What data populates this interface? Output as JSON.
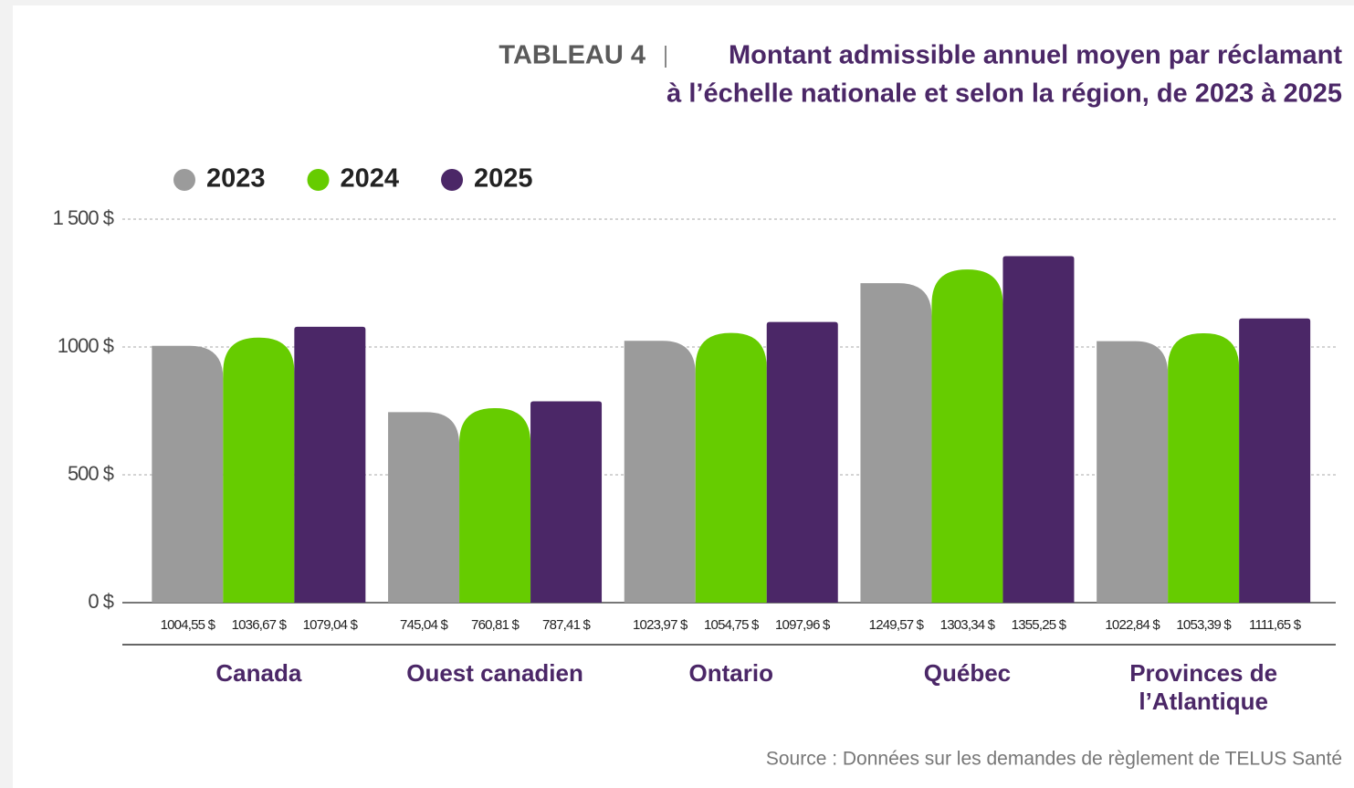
{
  "chart_data": {
    "type": "bar",
    "title_label": "TABLEAU 4",
    "title": [
      "Montant admissible annuel moyen par réclamant",
      "à l’échelle nationale et selon la région, de 2023 à 2025"
    ],
    "source": "Source : Données sur les demandes de règlement de TELUS Santé",
    "categories": [
      "Canada",
      "Ouest canadien",
      "Ontario",
      "Québec",
      "Provinces de l’Atlantique"
    ],
    "series": [
      {
        "name": "2023",
        "color": "#9b9b9b",
        "values": [
          1004.55,
          745.04,
          1023.97,
          1249.57,
          1022.84
        ],
        "value_labels": [
          "1004,55 $",
          "745,04 $",
          "1023,97 $",
          "1249,57 $",
          "1022,84 $"
        ]
      },
      {
        "name": "2024",
        "color": "#66cc00",
        "values": [
          1036.67,
          760.81,
          1054.75,
          1303.34,
          1053.39
        ],
        "value_labels": [
          "1036,67 $",
          "760,81 $",
          "1054,75 $",
          "1303,34 $",
          "1053,39 $"
        ]
      },
      {
        "name": "2025",
        "color": "#4b2767",
        "values": [
          1079.04,
          787.41,
          1097.96,
          1355.25,
          1111.65
        ],
        "value_labels": [
          "1079,04 $",
          "787,41 $",
          "1097,96 $",
          "1355,25 $",
          "1111,65 $"
        ]
      }
    ],
    "ylim": [
      0,
      1500
    ],
    "yticks": [
      {
        "value": 0,
        "label": "0 $"
      },
      {
        "value": 500,
        "label": "500 $"
      },
      {
        "value": 1000,
        "label": "1000 $"
      },
      {
        "value": 1500,
        "label": "1 500 $"
      }
    ],
    "grid": true,
    "legend": "top-left"
  }
}
